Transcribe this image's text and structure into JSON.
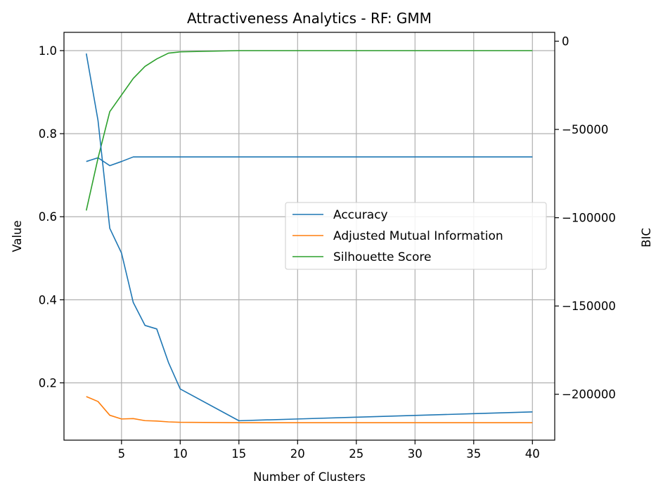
{
  "chart_data": {
    "type": "line",
    "title": "Attractiveness Analytics - RF: GMM",
    "xlabel": "Number of Clusters",
    "ylabel": "Value",
    "ylabel_right": "BIC",
    "xlim": [
      0.1,
      41.9
    ],
    "ylim": [
      0.062,
      1.044
    ],
    "ylim_right": [
      -226000,
      5000
    ],
    "x_ticks": [
      5,
      10,
      15,
      20,
      25,
      30,
      35,
      40
    ],
    "y_ticks": [
      0.2,
      0.4,
      0.6,
      0.8,
      1.0
    ],
    "y_tick_labels": [
      "0.2",
      "0.4",
      "0.6",
      "0.8",
      "1.0"
    ],
    "y_ticks_right": [
      0,
      -50000,
      -100000,
      -150000,
      -200000
    ],
    "y_tick_labels_right": [
      "0",
      "−50000",
      "−100000",
      "−150000",
      "−200000"
    ],
    "grid": true,
    "legend_position": "center-right",
    "series": [
      {
        "name": "Accuracy",
        "color": "#1f77b4",
        "axis": "left",
        "x": [
          2,
          3,
          4,
          5,
          6,
          7,
          8,
          9,
          10,
          15,
          20,
          25,
          30,
          35,
          40
        ],
        "values": [
          0.733,
          0.742,
          0.723,
          0.733,
          0.744,
          0.744,
          0.744,
          0.744,
          0.744,
          0.744,
          0.744,
          0.744,
          0.744,
          0.744,
          0.744
        ]
      },
      {
        "name": "Adjusted Mutual Information",
        "color": "#ff7f0e",
        "axis": "left",
        "x": [
          2,
          3,
          4,
          5,
          6,
          7,
          8,
          9,
          10,
          15,
          20,
          25,
          30,
          35,
          40
        ],
        "values": [
          0.167,
          0.155,
          0.122,
          0.113,
          0.114,
          0.109,
          0.108,
          0.106,
          0.105,
          0.104,
          0.104,
          0.104,
          0.104,
          0.104,
          0.104
        ]
      },
      {
        "name": "Silhouette Score",
        "color": "#2ca02c",
        "axis": "left",
        "x": [
          2,
          3,
          4,
          5,
          6,
          7,
          8,
          9,
          10,
          15,
          20,
          25,
          30,
          35,
          40
        ],
        "values": [
          0.615,
          0.741,
          0.853,
          0.893,
          0.933,
          0.962,
          0.98,
          0.994,
          0.997,
          1.0,
          1.0,
          1.0,
          1.0,
          1.0,
          1.0
        ]
      },
      {
        "color": "#1f77b4",
        "axis": "right",
        "x": [
          2,
          3,
          4,
          5,
          6,
          7,
          8,
          9,
          10,
          15,
          20,
          25,
          30,
          35,
          40
        ],
        "values": [
          -7000,
          -45000,
          -106000,
          -120000,
          -148000,
          -161000,
          -163000,
          -182000,
          -197000,
          -215000,
          -214000,
          -213000,
          -212000,
          -211000,
          -210000
        ]
      }
    ]
  }
}
